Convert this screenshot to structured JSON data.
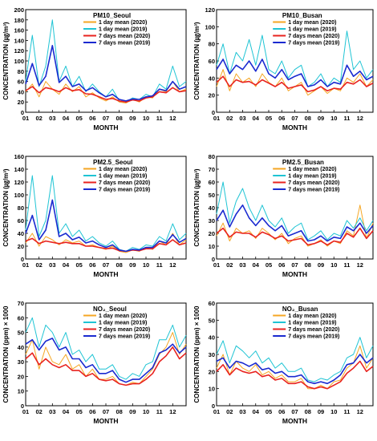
{
  "figure": {
    "background": "#ffffff"
  },
  "legend_entries": [
    "1 day mean (2020)",
    "1 day mean (2019)",
    "7 days mean (2020)",
    "7 days mean (2019)"
  ],
  "legend_colors": [
    "#f5a623",
    "#1fc4d4",
    "#e8231f",
    "#1a2ad0"
  ],
  "chart_data": [
    {
      "type": "line",
      "title": "PM10_Seoul",
      "xlabel": "MONTH",
      "ylabel": "CONCENTRATION (㎍/m³)",
      "xlim": [
        1,
        13
      ],
      "x_ticks": [
        "01",
        "02",
        "03",
        "04",
        "05",
        "06",
        "07",
        "08",
        "09",
        "10",
        "11",
        "12"
      ],
      "ylim": [
        0,
        200
      ],
      "y_ticks": [
        0,
        20,
        40,
        60,
        80,
        100,
        120,
        140,
        160,
        180,
        200
      ],
      "x": [
        1,
        1.5,
        2,
        2.5,
        3,
        3.5,
        4,
        4.5,
        5,
        5.5,
        6,
        6.5,
        7,
        7.5,
        8,
        8.5,
        9,
        9.5,
        10,
        10.5,
        11,
        11.5,
        12,
        12.5,
        13
      ],
      "series": [
        {
          "name": "1 day mean (2020)",
          "color": "#f5a623",
          "values": [
            40,
            55,
            30,
            60,
            45,
            35,
            55,
            40,
            50,
            30,
            38,
            28,
            22,
            30,
            20,
            18,
            25,
            20,
            30,
            28,
            45,
            40,
            60,
            40,
            45
          ]
        },
        {
          "name": "1 day mean (2019)",
          "color": "#1fc4d4",
          "values": [
            60,
            150,
            50,
            90,
            180,
            60,
            90,
            50,
            70,
            40,
            55,
            40,
            30,
            45,
            22,
            20,
            28,
            25,
            35,
            30,
            55,
            45,
            90,
            50,
            60
          ]
        },
        {
          "name": "7 days mean (2020)",
          "color": "#e8231f",
          "values": [
            42,
            50,
            38,
            48,
            45,
            40,
            48,
            42,
            44,
            36,
            35,
            30,
            25,
            27,
            22,
            20,
            24,
            22,
            28,
            30,
            40,
            38,
            48,
            40,
            42
          ]
        },
        {
          "name": "7 days mean (2019)",
          "color": "#1a2ad0",
          "values": [
            55,
            95,
            52,
            70,
            130,
            58,
            70,
            50,
            55,
            42,
            48,
            38,
            30,
            35,
            25,
            22,
            26,
            25,
            30,
            32,
            45,
            42,
            60,
            45,
            50
          ]
        }
      ]
    },
    {
      "type": "line",
      "title": "PM10_Busan",
      "xlabel": "MONTH",
      "ylabel": "CONCENTRATION (㎍/m³)",
      "xlim": [
        1,
        13
      ],
      "x_ticks": [
        "01",
        "02",
        "03",
        "04",
        "05",
        "06",
        "07",
        "08",
        "09",
        "10",
        "11",
        "12"
      ],
      "ylim": [
        0,
        120
      ],
      "y_ticks": [
        0,
        20,
        40,
        60,
        80,
        100,
        120
      ],
      "x": [
        1,
        1.5,
        2,
        2.5,
        3,
        3.5,
        4,
        4.5,
        5,
        5.5,
        6,
        6.5,
        7,
        7.5,
        8,
        8.5,
        9,
        9.5,
        10,
        10.5,
        11,
        11.5,
        12,
        12.5,
        13
      ],
      "series": [
        {
          "name": "1 day mean (2020)",
          "color": "#f5a623",
          "values": [
            30,
            50,
            25,
            45,
            35,
            40,
            30,
            45,
            35,
            30,
            40,
            25,
            30,
            35,
            20,
            25,
            30,
            22,
            28,
            25,
            40,
            35,
            45,
            30,
            38
          ]
        },
        {
          "name": "1 day mean (2019)",
          "color": "#1fc4d4",
          "values": [
            55,
            80,
            45,
            70,
            60,
            85,
            55,
            90,
            50,
            45,
            60,
            40,
            50,
            55,
            30,
            35,
            45,
            30,
            40,
            35,
            95,
            50,
            60,
            40,
            50
          ]
        },
        {
          "name": "7 days mean (2020)",
          "color": "#e8231f",
          "values": [
            35,
            42,
            30,
            38,
            35,
            36,
            32,
            38,
            34,
            30,
            35,
            28,
            30,
            32,
            24,
            26,
            30,
            25,
            28,
            27,
            35,
            33,
            38,
            30,
            34
          ]
        },
        {
          "name": "7 days mean (2019)",
          "color": "#1a2ad0",
          "values": [
            50,
            62,
            45,
            55,
            50,
            60,
            48,
            62,
            45,
            40,
            50,
            38,
            42,
            45,
            30,
            32,
            38,
            30,
            35,
            33,
            55,
            42,
            48,
            38,
            42
          ]
        }
      ]
    },
    {
      "type": "line",
      "title": "PM2.5_Seoul",
      "xlabel": "MONTH",
      "ylabel": "CONCENTRATION (㎍/m³)",
      "xlim": [
        1,
        13
      ],
      "x_ticks": [
        "01",
        "02",
        "03",
        "04",
        "05",
        "06",
        "07",
        "08",
        "09",
        "10",
        "11",
        "12"
      ],
      "ylim": [
        0,
        160
      ],
      "y_ticks": [
        0,
        20,
        40,
        60,
        80,
        100,
        120,
        140,
        160
      ],
      "x": [
        1,
        1.5,
        2,
        2.5,
        3,
        3.5,
        4,
        4.5,
        5,
        5.5,
        6,
        6.5,
        7,
        7.5,
        8,
        8.5,
        9,
        9.5,
        10,
        10.5,
        11,
        11.5,
        12,
        12.5,
        13
      ],
      "series": [
        {
          "name": "1 day mean (2020)",
          "color": "#f5a623",
          "values": [
            25,
            40,
            20,
            35,
            30,
            22,
            30,
            25,
            28,
            20,
            22,
            18,
            15,
            20,
            12,
            10,
            14,
            12,
            18,
            15,
            28,
            22,
            40,
            22,
            30
          ]
        },
        {
          "name": "1 day mean (2019)",
          "color": "#1fc4d4",
          "values": [
            45,
            130,
            35,
            60,
            130,
            40,
            55,
            35,
            45,
            28,
            35,
            25,
            20,
            28,
            15,
            12,
            18,
            15,
            22,
            20,
            35,
            28,
            55,
            30,
            40
          ]
        },
        {
          "name": "7 days mean (2020)",
          "color": "#e8231f",
          "values": [
            28,
            32,
            24,
            28,
            26,
            24,
            26,
            24,
            24,
            20,
            20,
            18,
            16,
            17,
            13,
            12,
            14,
            13,
            16,
            16,
            24,
            22,
            30,
            22,
            25
          ]
        },
        {
          "name": "7 days mean (2019)",
          "color": "#1a2ad0",
          "values": [
            40,
            68,
            30,
            45,
            92,
            35,
            40,
            30,
            34,
            25,
            28,
            22,
            18,
            22,
            14,
            12,
            15,
            14,
            18,
            18,
            28,
            25,
            38,
            26,
            32
          ]
        }
      ]
    },
    {
      "type": "line",
      "title": "PM2.5_Busan",
      "xlabel": "MONTH",
      "ylabel": "CONCENTRATION (㎍/m³)",
      "xlim": [
        1,
        13
      ],
      "x_ticks": [
        "01",
        "02",
        "03",
        "04",
        "05",
        "06",
        "07",
        "08",
        "09",
        "10",
        "11",
        "12"
      ],
      "ylim": [
        0,
        80
      ],
      "y_ticks": [
        0,
        10,
        20,
        30,
        40,
        50,
        60,
        70,
        80
      ],
      "x": [
        1,
        1.5,
        2,
        2.5,
        3,
        3.5,
        4,
        4.5,
        5,
        5.5,
        6,
        6.5,
        7,
        7.5,
        8,
        8.5,
        9,
        9.5,
        10,
        10.5,
        11,
        11.5,
        12,
        12.5,
        13
      ],
      "series": [
        {
          "name": "1 day mean (2020)",
          "color": "#f5a623",
          "values": [
            18,
            28,
            14,
            24,
            20,
            22,
            16,
            24,
            20,
            15,
            20,
            12,
            16,
            18,
            10,
            12,
            15,
            10,
            14,
            12,
            22,
            18,
            42,
            16,
            28
          ]
        },
        {
          "name": "1 day mean (2019)",
          "color": "#1fc4d4",
          "values": [
            35,
            60,
            28,
            45,
            55,
            40,
            30,
            42,
            30,
            25,
            32,
            20,
            25,
            28,
            15,
            18,
            22,
            15,
            20,
            18,
            30,
            24,
            32,
            22,
            30
          ]
        },
        {
          "name": "7 days mean (2020)",
          "color": "#e8231f",
          "values": [
            20,
            24,
            17,
            21,
            20,
            20,
            17,
            21,
            19,
            16,
            18,
            14,
            15,
            16,
            11,
            12,
            14,
            11,
            14,
            13,
            20,
            17,
            24,
            16,
            22
          ]
        },
        {
          "name": "7 days mean (2019)",
          "color": "#1a2ad0",
          "values": [
            30,
            38,
            25,
            35,
            42,
            32,
            26,
            32,
            26,
            22,
            26,
            18,
            20,
            22,
            14,
            15,
            18,
            14,
            17,
            16,
            25,
            22,
            28,
            20,
            26
          ]
        }
      ]
    },
    {
      "type": "line",
      "title": "NO₂_Seoul",
      "xlabel": "MONTH",
      "ylabel": "CONCENTRATION (ppm) × 1000",
      "xlim": [
        1,
        13
      ],
      "x_ticks": [
        "01",
        "02",
        "03",
        "04",
        "05",
        "06",
        "07",
        "08",
        "09",
        "10",
        "11",
        "12"
      ],
      "ylim": [
        0,
        70
      ],
      "y_ticks": [
        0,
        10,
        20,
        30,
        40,
        50,
        60,
        70
      ],
      "x": [
        1,
        1.5,
        2,
        2.5,
        3,
        3.5,
        4,
        4.5,
        5,
        5.5,
        6,
        6.5,
        7,
        7.5,
        8,
        8.5,
        9,
        9.5,
        10,
        10.5,
        11,
        11.5,
        12,
        12.5,
        13
      ],
      "series": [
        {
          "name": "1 day mean (2020)",
          "color": "#f5a623",
          "values": [
            35,
            45,
            25,
            40,
            30,
            28,
            35,
            25,
            28,
            20,
            25,
            18,
            18,
            20,
            15,
            14,
            16,
            15,
            20,
            25,
            35,
            40,
            50,
            35,
            42
          ]
        },
        {
          "name": "1 day mean (2019)",
          "color": "#1fc4d4",
          "values": [
            50,
            60,
            40,
            55,
            50,
            40,
            50,
            35,
            38,
            30,
            35,
            25,
            25,
            28,
            20,
            18,
            22,
            20,
            28,
            30,
            45,
            45,
            55,
            40,
            48
          ]
        },
        {
          "name": "7 days mean (2020)",
          "color": "#e8231f",
          "values": [
            32,
            36,
            28,
            32,
            28,
            26,
            28,
            24,
            24,
            20,
            22,
            18,
            17,
            18,
            15,
            14,
            15,
            15,
            18,
            22,
            30,
            34,
            40,
            32,
            36
          ]
        },
        {
          "name": "7 days mean (2019)",
          "color": "#1a2ad0",
          "values": [
            42,
            45,
            38,
            44,
            46,
            38,
            40,
            32,
            32,
            26,
            28,
            22,
            22,
            24,
            18,
            16,
            18,
            18,
            22,
            26,
            36,
            38,
            42,
            36,
            40
          ]
        }
      ]
    },
    {
      "type": "line",
      "title": "NO₂_Busan",
      "xlabel": "MONTH",
      "ylabel": "CONCENTRATION (ppm) × 1000",
      "xlim": [
        1,
        13
      ],
      "x_ticks": [
        "01",
        "02",
        "03",
        "04",
        "05",
        "06",
        "07",
        "08",
        "09",
        "10",
        "11",
        "12"
      ],
      "ylim": [
        0,
        60
      ],
      "y_ticks": [
        0,
        10,
        20,
        30,
        40,
        50,
        60
      ],
      "x": [
        1,
        1.5,
        2,
        2.5,
        3,
        3.5,
        4,
        4.5,
        5,
        5.5,
        6,
        6.5,
        7,
        7.5,
        8,
        8.5,
        9,
        9.5,
        10,
        10.5,
        11,
        11.5,
        12,
        12.5,
        13
      ],
      "series": [
        {
          "name": "1 day mean (2020)",
          "color": "#f5a623",
          "values": [
            22,
            30,
            18,
            26,
            22,
            20,
            24,
            18,
            20,
            16,
            18,
            14,
            14,
            16,
            10,
            10,
            12,
            10,
            14,
            15,
            22,
            25,
            35,
            22,
            28
          ]
        },
        {
          "name": "1 day mean (2019)",
          "color": "#1fc4d4",
          "values": [
            30,
            38,
            25,
            35,
            32,
            28,
            32,
            25,
            28,
            22,
            25,
            20,
            20,
            22,
            15,
            14,
            16,
            15,
            18,
            20,
            28,
            30,
            40,
            28,
            35
          ]
        },
        {
          "name": "7 days mean (2020)",
          "color": "#e8231f",
          "values": [
            20,
            24,
            18,
            22,
            20,
            19,
            20,
            17,
            18,
            15,
            16,
            13,
            13,
            14,
            11,
            10,
            11,
            10,
            12,
            14,
            19,
            22,
            26,
            20,
            23
          ]
        },
        {
          "name": "7 days mean (2019)",
          "color": "#1a2ad0",
          "values": [
            26,
            28,
            22,
            26,
            25,
            23,
            25,
            21,
            22,
            19,
            20,
            17,
            17,
            18,
            14,
            13,
            14,
            13,
            15,
            18,
            24,
            25,
            30,
            25,
            28
          ]
        }
      ]
    }
  ]
}
